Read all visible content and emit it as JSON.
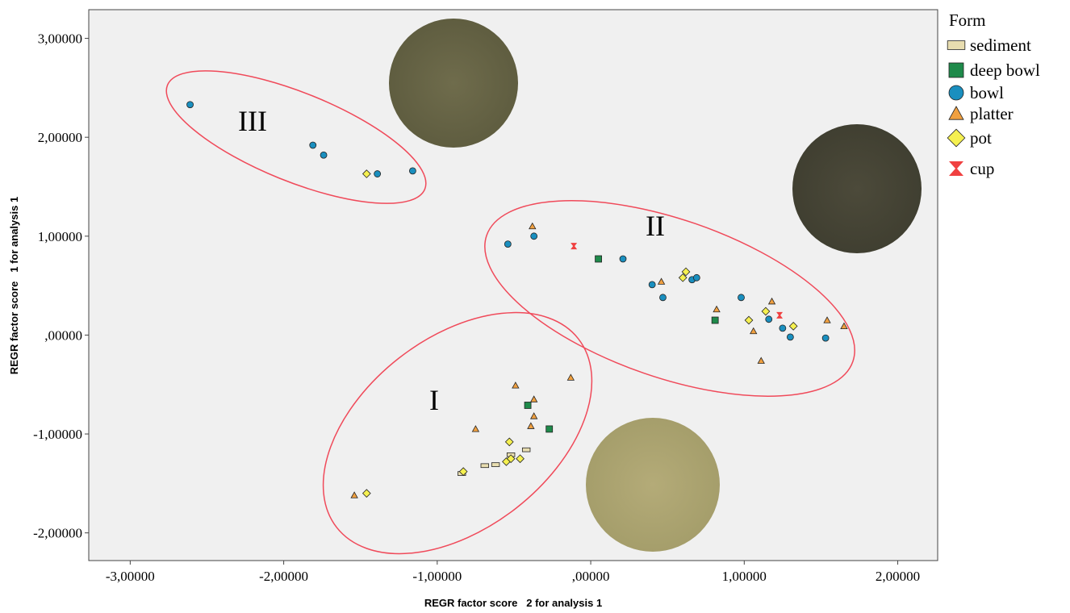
{
  "chart_data": {
    "type": "scatter",
    "x_label": "REGR factor score   2 for analysis 1",
    "y_label": "REGR factor score   1 for analysis 1",
    "legend_title": "Form",
    "legend": "right",
    "annotations": [
      "I",
      "II",
      "III"
    ],
    "xlim": [
      -3.27,
      2.26
    ],
    "ylim": [
      -2.28,
      3.29
    ],
    "xticks": [
      {
        "value": -3,
        "label": "-3,00000"
      },
      {
        "value": -2,
        "label": "-2,00000"
      },
      {
        "value": -1,
        "label": "-1,00000"
      },
      {
        "value": 0,
        "label": ",00000"
      },
      {
        "value": 1,
        "label": "1,00000"
      },
      {
        "value": 2,
        "label": "2,00000"
      }
    ],
    "yticks": [
      {
        "value": -2,
        "label": "-2,00000"
      },
      {
        "value": -1,
        "label": "-1,00000"
      },
      {
        "value": 0,
        "label": ",00000"
      },
      {
        "value": 1,
        "label": "1,00000"
      },
      {
        "value": 2,
        "label": "2,00000"
      },
      {
        "value": 3,
        "label": "3,00000"
      }
    ],
    "series": [
      {
        "name": "sediment",
        "color": "#e8ddb0",
        "marker": "rect",
        "x": [
          -0.42,
          -0.52,
          -0.62,
          -0.69,
          -0.84
        ],
        "values": [
          -1.16,
          -1.21,
          -1.31,
          -1.32,
          -1.4
        ]
      },
      {
        "name": "deep bowl",
        "color": "#1e8a4a",
        "marker": "square",
        "x": [
          0.05,
          0.81,
          -0.41,
          -0.27
        ],
        "values": [
          0.77,
          0.15,
          -0.71,
          -0.95
        ]
      },
      {
        "name": "bowl",
        "color": "#1a8fbf",
        "marker": "circle",
        "x": [
          -2.61,
          -1.81,
          -1.74,
          -1.39,
          -1.16,
          -0.54,
          -0.37,
          0.21,
          0.4,
          0.47,
          0.66,
          0.69,
          0.98,
          1.16,
          1.25,
          1.3,
          1.53
        ],
        "values": [
          2.33,
          1.92,
          1.82,
          1.63,
          1.66,
          0.92,
          1.0,
          0.77,
          0.51,
          0.38,
          0.56,
          0.58,
          0.38,
          0.16,
          0.07,
          -0.02,
          -0.03
        ]
      },
      {
        "name": "platter",
        "color": "#f0a040",
        "marker": "triangle",
        "x": [
          -0.38,
          0.46,
          0.82,
          1.18,
          1.06,
          1.11,
          1.54,
          1.65,
          -0.13,
          -0.49,
          -0.37,
          -0.37,
          -0.39,
          -0.75,
          -1.54
        ],
        "values": [
          1.1,
          0.54,
          0.26,
          0.34,
          0.04,
          -0.26,
          0.15,
          0.09,
          -0.43,
          -0.51,
          -0.65,
          -0.82,
          -0.92,
          -0.95,
          -1.62
        ]
      },
      {
        "name": "pot",
        "color": "#f5f050",
        "marker": "diamond",
        "x": [
          -1.46,
          0.62,
          0.6,
          1.03,
          1.14,
          1.32,
          -0.53,
          -0.55,
          -0.52,
          -0.46,
          -0.83,
          -1.46
        ],
        "values": [
          1.63,
          0.64,
          0.58,
          0.15,
          0.24,
          0.09,
          -1.08,
          -1.28,
          -1.25,
          -1.25,
          -1.38,
          -1.6
        ]
      },
      {
        "name": "cup",
        "color": "#f04040",
        "marker": "hourglass",
        "x": [
          -0.11,
          1.23
        ],
        "values": [
          0.9,
          0.2
        ]
      }
    ]
  }
}
